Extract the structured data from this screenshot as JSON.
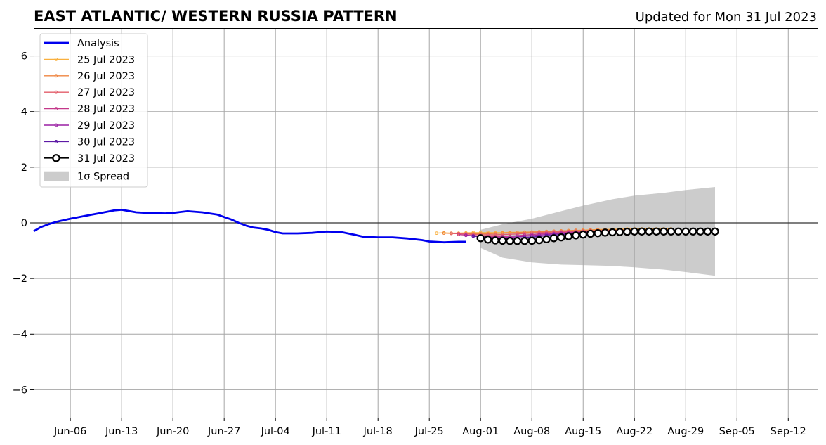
{
  "header": {
    "title": "EAST ATLANTIC/ WESTERN RUSSIA PATTERN",
    "updated": "Updated for Mon 31 Jul 2023"
  },
  "chart_data": {
    "type": "line",
    "title": "EAST ATLANTIC/ WESTERN RUSSIA PATTERN",
    "xlabel": "",
    "ylabel": "",
    "xlim": [
      "2023-06-01",
      "2023-09-16"
    ],
    "ylim": [
      -7,
      7
    ],
    "grid": true,
    "legend_position": "top-left",
    "x_ticks": [
      "Jun-06",
      "Jun-13",
      "Jun-20",
      "Jun-27",
      "Jul-04",
      "Jul-11",
      "Jul-18",
      "Jul-25",
      "Aug-01",
      "Aug-08",
      "Aug-15",
      "Aug-22",
      "Aug-29",
      "Sep-05",
      "Sep-12"
    ],
    "x_tick_dates": [
      "2023-06-06",
      "2023-06-13",
      "2023-06-20",
      "2023-06-27",
      "2023-07-04",
      "2023-07-11",
      "2023-07-18",
      "2023-07-25",
      "2023-08-01",
      "2023-08-08",
      "2023-08-15",
      "2023-08-22",
      "2023-08-29",
      "2023-09-05",
      "2023-09-12"
    ],
    "y_ticks": [
      6,
      4,
      2,
      0,
      -2,
      -4,
      -6
    ],
    "y_tick_labels": [
      "6",
      "4",
      "2",
      "0",
      "−2",
      "−4",
      "−6"
    ],
    "series": [
      {
        "name": "Analysis",
        "color": "#0000ee",
        "style": "thick-line",
        "x": [
          "2023-06-01",
          "2023-06-02",
          "2023-06-03",
          "2023-06-04",
          "2023-06-06",
          "2023-06-08",
          "2023-06-10",
          "2023-06-12",
          "2023-06-13",
          "2023-06-15",
          "2023-06-17",
          "2023-06-19",
          "2023-06-20",
          "2023-06-22",
          "2023-06-24",
          "2023-06-26",
          "2023-06-28",
          "2023-06-29",
          "2023-06-30",
          "2023-07-01",
          "2023-07-02",
          "2023-07-03",
          "2023-07-04",
          "2023-07-05",
          "2023-07-07",
          "2023-07-09",
          "2023-07-11",
          "2023-07-13",
          "2023-07-15",
          "2023-07-16",
          "2023-07-18",
          "2023-07-20",
          "2023-07-22",
          "2023-07-24",
          "2023-07-25",
          "2023-07-27",
          "2023-07-29",
          "2023-07-30"
        ],
        "y": [
          -0.3,
          -0.15,
          -0.05,
          0.03,
          0.15,
          0.25,
          0.35,
          0.45,
          0.47,
          0.38,
          0.35,
          0.34,
          0.36,
          0.42,
          0.38,
          0.3,
          0.12,
          0.0,
          -0.1,
          -0.17,
          -0.2,
          -0.25,
          -0.33,
          -0.38,
          -0.38,
          -0.36,
          -0.31,
          -0.33,
          -0.44,
          -0.5,
          -0.52,
          -0.52,
          -0.56,
          -0.62,
          -0.67,
          -0.7,
          -0.68,
          -0.68
        ]
      },
      {
        "name": "25 Jul 2023",
        "color": "#f9b03e",
        "start": "2023-07-26",
        "y": [
          -0.37,
          -0.36,
          -0.37,
          -0.37,
          -0.36,
          -0.35,
          -0.35,
          -0.35,
          -0.35,
          -0.35,
          -0.34,
          -0.34,
          -0.33,
          -0.33,
          -0.32,
          -0.31,
          -0.3,
          -0.29,
          -0.28,
          -0.27,
          -0.26,
          -0.25,
          -0.24,
          -0.24,
          -0.23,
          -0.23,
          -0.22,
          -0.22,
          -0.22,
          -0.22,
          -0.22,
          -0.22,
          -0.22
        ]
      },
      {
        "name": "26 Jul 2023",
        "color": "#ef8540",
        "start": "2023-07-27",
        "y": [
          -0.37,
          -0.38,
          -0.38,
          -0.39,
          -0.39,
          -0.39,
          -0.39,
          -0.38,
          -0.37,
          -0.36,
          -0.35,
          -0.34,
          -0.33,
          -0.32,
          -0.31,
          -0.3,
          -0.29,
          -0.28,
          -0.27,
          -0.27,
          -0.26,
          -0.25,
          -0.25,
          -0.25,
          -0.25,
          -0.24,
          -0.24,
          -0.24,
          -0.24,
          -0.24,
          -0.24,
          -0.24
        ]
      },
      {
        "name": "27 Jul 2023",
        "color": "#e35d6a",
        "start": "2023-07-28",
        "y": [
          -0.38,
          -0.39,
          -0.4,
          -0.42,
          -0.43,
          -0.43,
          -0.43,
          -0.42,
          -0.41,
          -0.4,
          -0.38,
          -0.37,
          -0.35,
          -0.34,
          -0.33,
          -0.32,
          -0.31,
          -0.3,
          -0.29,
          -0.28,
          -0.28,
          -0.27,
          -0.27,
          -0.27,
          -0.26,
          -0.26,
          -0.26,
          -0.26,
          -0.26,
          -0.26,
          -0.26
        ]
      },
      {
        "name": "28 Jul 2023",
        "color": "#c4388a",
        "start": "2023-07-29",
        "y": [
          -0.42,
          -0.44,
          -0.46,
          -0.48,
          -0.49,
          -0.5,
          -0.49,
          -0.48,
          -0.46,
          -0.44,
          -0.42,
          -0.4,
          -0.38,
          -0.37,
          -0.35,
          -0.34,
          -0.33,
          -0.32,
          -0.31,
          -0.3,
          -0.3,
          -0.29,
          -0.29,
          -0.28,
          -0.28,
          -0.28,
          -0.28,
          -0.28,
          -0.28,
          -0.28
        ]
      },
      {
        "name": "29 Jul 2023",
        "color": "#9a1fa3",
        "start": "2023-07-30",
        "y": [
          -0.45,
          -0.47,
          -0.5,
          -0.52,
          -0.53,
          -0.53,
          -0.52,
          -0.5,
          -0.48,
          -0.46,
          -0.44,
          -0.42,
          -0.4,
          -0.38,
          -0.37,
          -0.35,
          -0.34,
          -0.33,
          -0.32,
          -0.31,
          -0.31,
          -0.3,
          -0.3,
          -0.3,
          -0.29,
          -0.29,
          -0.29,
          -0.29,
          -0.29
        ]
      },
      {
        "name": "30 Jul 2023",
        "color": "#5d1aa5",
        "start": "2023-07-31",
        "y": [
          -0.48,
          -0.5,
          -0.53,
          -0.55,
          -0.56,
          -0.56,
          -0.55,
          -0.53,
          -0.51,
          -0.49,
          -0.46,
          -0.44,
          -0.42,
          -0.4,
          -0.38,
          -0.37,
          -0.35,
          -0.34,
          -0.33,
          -0.32,
          -0.32,
          -0.31,
          -0.31,
          -0.3,
          -0.3,
          -0.3,
          -0.3,
          -0.3
        ]
      },
      {
        "name": "31 Jul 2023",
        "color": "#000000",
        "marker": "open-circle",
        "start": "2023-08-01",
        "y": [
          -0.55,
          -0.6,
          -0.63,
          -0.64,
          -0.65,
          -0.65,
          -0.65,
          -0.64,
          -0.62,
          -0.59,
          -0.55,
          -0.52,
          -0.48,
          -0.45,
          -0.42,
          -0.39,
          -0.37,
          -0.35,
          -0.34,
          -0.33,
          -0.32,
          -0.31,
          -0.31,
          -0.31,
          -0.31,
          -0.31,
          -0.31,
          -0.31,
          -0.31,
          -0.31,
          -0.31,
          -0.31,
          -0.31
        ]
      }
    ],
    "spread": {
      "name": "1σ Spread",
      "color": "#cccccc",
      "x": [
        "2023-08-01",
        "2023-08-04",
        "2023-08-08",
        "2023-08-12",
        "2023-08-15",
        "2023-08-19",
        "2023-08-22",
        "2023-08-26",
        "2023-08-29",
        "2023-09-02"
      ],
      "upper": [
        -0.25,
        -0.05,
        0.15,
        0.42,
        0.62,
        0.85,
        0.98,
        1.08,
        1.18,
        1.29
      ],
      "lower": [
        -0.9,
        -1.25,
        -1.42,
        -1.5,
        -1.52,
        -1.55,
        -1.6,
        -1.68,
        -1.77,
        -1.9
      ]
    }
  }
}
